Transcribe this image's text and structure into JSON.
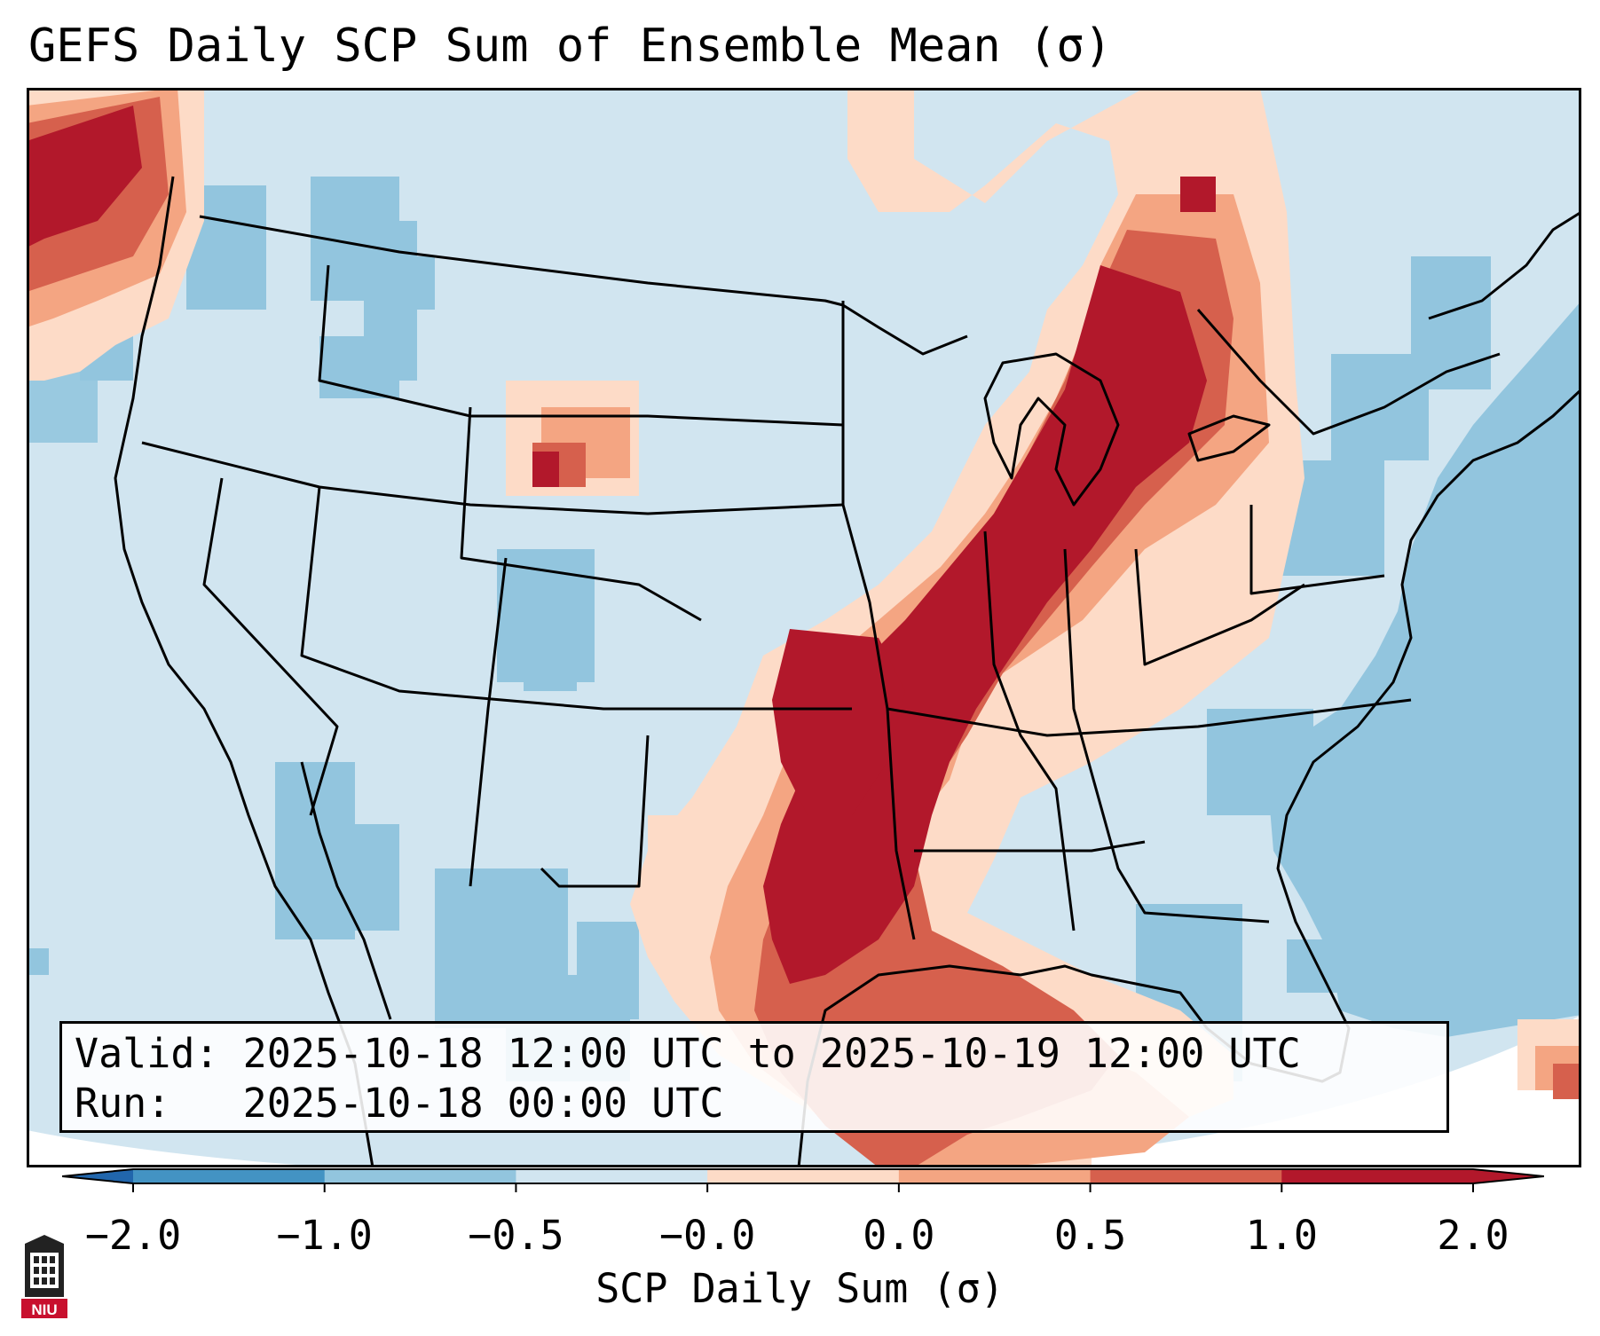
{
  "title": "GEFS Daily SCP Sum of Ensemble Mean (σ)",
  "info": {
    "valid_label": "Valid:",
    "valid_value": "2025-10-18 12:00 UTC to 2025-10-19 12:00 UTC",
    "run_label": "Run:",
    "run_value": "2025-10-18 00:00 UTC"
  },
  "colorbar": {
    "label": "SCP Daily Sum (σ)",
    "ticks": [
      "−2.0",
      "−1.0",
      "−0.5",
      "−0.0",
      "0.0",
      "0.5",
      "1.0",
      "2.0"
    ],
    "colors": [
      "#4393c3",
      "#92c5de",
      "#d1e5f0",
      "#fddbc7",
      "#f4a582",
      "#d6604d",
      "#b2182b"
    ],
    "extend": "both"
  },
  "map_colors": {
    "ocean": "#92c5de",
    "land_base": "#d1e5f0",
    "outside": "#ffffff",
    "pos_low": "#fddbc7",
    "pos_mid": "#f4a582",
    "pos_high": "#d6604d",
    "pos_max": "#b2182b",
    "neg_low": "#92c5de"
  },
  "logo_text": "NIU"
}
